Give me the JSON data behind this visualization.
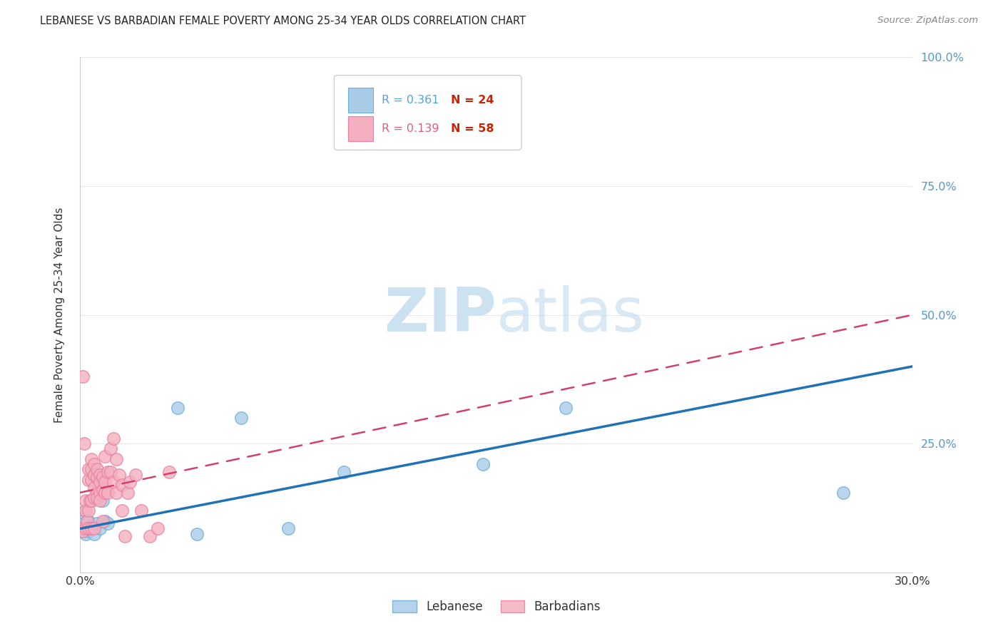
{
  "title": "LEBANESE VS BARBADIAN FEMALE POVERTY AMONG 25-34 YEAR OLDS CORRELATION CHART",
  "source": "Source: ZipAtlas.com",
  "ylabel": "Female Poverty Among 25-34 Year Olds",
  "xlim": [
    0.0,
    0.3
  ],
  "ylim": [
    0.0,
    1.0
  ],
  "legend_r_leb": "R = 0.361",
  "legend_n_leb": "N = 24",
  "legend_r_barb": "R = 0.139",
  "legend_n_barb": "N = 58",
  "leb_color": "#a8cce8",
  "leb_edge_color": "#6baed6",
  "barb_color": "#f4b0c0",
  "barb_edge_color": "#e880a0",
  "leb_line_color": "#2171b5",
  "barb_line_color": "#d04070",
  "r_text_leb_color": "#4da6e0",
  "r_text_barb_color": "#e06080",
  "n_text_color": "#cc2200",
  "yaxis_tick_color": "#5599cc",
  "watermark_zip_color": "#c8dff0",
  "watermark_atlas_color": "#c8dff0",
  "background_color": "#ffffff",
  "grid_color": "#e8e8e8",
  "title_color": "#222222",
  "source_color": "#888888",
  "ylabel_color": "#333333",
  "legend_box_edge": "#cccccc",
  "lebanese_x": [
    0.0008,
    0.001,
    0.0012,
    0.0015,
    0.002,
    0.002,
    0.003,
    0.003,
    0.004,
    0.004,
    0.005,
    0.006,
    0.007,
    0.008,
    0.009,
    0.01,
    0.035,
    0.042,
    0.058,
    0.075,
    0.095,
    0.145,
    0.175,
    0.275
  ],
  "lebanese_y": [
    0.1,
    0.08,
    0.095,
    0.085,
    0.075,
    0.12,
    0.08,
    0.1,
    0.09,
    0.14,
    0.075,
    0.095,
    0.085,
    0.14,
    0.1,
    0.095,
    0.32,
    0.075,
    0.3,
    0.085,
    0.195,
    0.21,
    0.32,
    0.155
  ],
  "barbadian_x": [
    0.0005,
    0.001,
    0.001,
    0.001,
    0.0015,
    0.002,
    0.002,
    0.002,
    0.0025,
    0.003,
    0.003,
    0.003,
    0.003,
    0.0035,
    0.004,
    0.004,
    0.004,
    0.004,
    0.004,
    0.005,
    0.005,
    0.005,
    0.005,
    0.005,
    0.005,
    0.006,
    0.006,
    0.006,
    0.006,
    0.007,
    0.007,
    0.007,
    0.007,
    0.008,
    0.008,
    0.008,
    0.009,
    0.009,
    0.009,
    0.01,
    0.01,
    0.011,
    0.011,
    0.012,
    0.012,
    0.013,
    0.013,
    0.014,
    0.015,
    0.015,
    0.016,
    0.017,
    0.018,
    0.02,
    0.022,
    0.025,
    0.028,
    0.032
  ],
  "barbadian_y": [
    0.085,
    0.085,
    0.08,
    0.38,
    0.25,
    0.085,
    0.12,
    0.14,
    0.1,
    0.085,
    0.12,
    0.18,
    0.2,
    0.14,
    0.085,
    0.22,
    0.18,
    0.14,
    0.2,
    0.085,
    0.19,
    0.21,
    0.165,
    0.145,
    0.19,
    0.185,
    0.2,
    0.155,
    0.145,
    0.19,
    0.175,
    0.155,
    0.14,
    0.16,
    0.185,
    0.1,
    0.175,
    0.155,
    0.225,
    0.195,
    0.155,
    0.24,
    0.195,
    0.175,
    0.26,
    0.22,
    0.155,
    0.19,
    0.12,
    0.17,
    0.07,
    0.155,
    0.175,
    0.19,
    0.12,
    0.07,
    0.085,
    0.195
  ]
}
